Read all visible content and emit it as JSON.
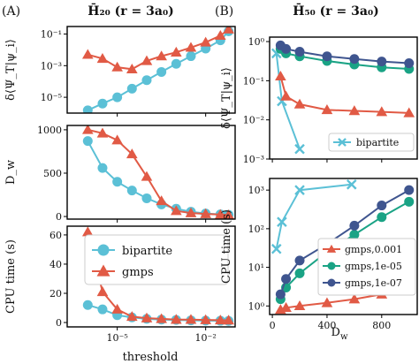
{
  "colors": {
    "bipartite": "#5bc0d6",
    "gmps": "#e15a45",
    "gmps_0.001": "#e15a45",
    "gmps_1e-05": "#1aa385",
    "gmps_1e-07": "#3f558f"
  },
  "left": {
    "panel_label": "(A)",
    "title": "H̄₂₀ (r = 3a₀)",
    "xlabel": "threshold"
  },
  "right": {
    "panel_label": "(B)",
    "title": "H̄₅₀ (r = 3a₀)",
    "xlabel": "D_w"
  },
  "chart_data": [
    {
      "id": "A-top",
      "type": "line",
      "xscale": "log",
      "yscale": "log",
      "xlim": [
        2e-07,
        0.1
      ],
      "ylim": [
        1e-06,
        0.3
      ],
      "ylabel": "δ⟨Ψ_T|ψ_i⟩",
      "yticks": [
        {
          "v": 1e-05,
          "label": "10⁻⁵"
        },
        {
          "v": 0.001,
          "label": "10⁻³"
        },
        {
          "v": 0.1,
          "label": "10⁻¹"
        }
      ],
      "xticks": [
        {
          "v": 1e-05,
          "label": ""
        },
        {
          "v": 0.01,
          "label": ""
        }
      ],
      "series": [
        {
          "name": "bipartite",
          "marker": "circle",
          "x": [
            1e-06,
            3.16e-06,
            1e-05,
            3.16e-05,
            0.0001,
            0.000316,
            0.001,
            0.00316,
            0.01,
            0.0316,
            0.06
          ],
          "y": [
            1.5e-06,
            4e-06,
            1e-05,
            3.5e-05,
            0.00012,
            0.0004,
            0.0013,
            0.004,
            0.012,
            0.04,
            0.15
          ]
        },
        {
          "name": "gmps",
          "marker": "triangle",
          "x": [
            1e-06,
            3.16e-06,
            1e-05,
            3.16e-05,
            0.0001,
            0.000316,
            0.001,
            0.00316,
            0.01,
            0.0316,
            0.06
          ],
          "y": [
            0.005,
            0.0028,
            0.0008,
            0.0006,
            0.002,
            0.004,
            0.007,
            0.014,
            0.03,
            0.08,
            0.2
          ]
        }
      ]
    },
    {
      "id": "A-mid",
      "type": "line",
      "xscale": "log",
      "yscale": "linear",
      "xlim": [
        2e-07,
        0.1
      ],
      "ylim": [
        -30,
        1050
      ],
      "ylabel": "D_w",
      "yticks": [
        {
          "v": 0,
          "label": "0"
        },
        {
          "v": 500,
          "label": "500"
        },
        {
          "v": 1000,
          "label": "1000"
        }
      ],
      "xticks": [
        {
          "v": 1e-05,
          "label": ""
        },
        {
          "v": 0.01,
          "label": ""
        }
      ],
      "series": [
        {
          "name": "bipartite",
          "marker": "circle",
          "x": [
            1e-06,
            3.16e-06,
            1e-05,
            3.16e-05,
            0.0001,
            0.000316,
            0.001,
            0.00316,
            0.01,
            0.0316,
            0.06
          ],
          "y": [
            870,
            560,
            400,
            300,
            210,
            140,
            90,
            55,
            35,
            25,
            20
          ]
        },
        {
          "name": "gmps",
          "marker": "triangle",
          "x": [
            1e-06,
            3.16e-06,
            1e-05,
            3.16e-05,
            0.0001,
            0.000316,
            0.001,
            0.00316,
            0.01,
            0.0316,
            0.06
          ],
          "y": [
            1000,
            960,
            880,
            720,
            460,
            180,
            65,
            40,
            30,
            22,
            18
          ]
        }
      ]
    },
    {
      "id": "A-bot",
      "type": "line",
      "xscale": "log",
      "yscale": "linear",
      "xlim": [
        2e-07,
        0.1
      ],
      "ylim": [
        -3,
        66
      ],
      "ylabel": "CPU time (s)",
      "yticks": [
        {
          "v": 0,
          "label": "0"
        },
        {
          "v": 20,
          "label": "20"
        },
        {
          "v": 40,
          "label": "40"
        },
        {
          "v": 60,
          "label": "60"
        }
      ],
      "xticks": [
        {
          "v": 1e-05,
          "label": "10⁻⁵"
        },
        {
          "v": 0.01,
          "label": "10⁻²"
        }
      ],
      "legend": "upper right",
      "series": [
        {
          "name": "bipartite",
          "marker": "circle",
          "x": [
            1e-06,
            3.16e-06,
            1e-05,
            3.16e-05,
            0.0001,
            0.000316,
            0.001,
            0.00316,
            0.01,
            0.0316,
            0.06
          ],
          "y": [
            12,
            9,
            5,
            3.5,
            2.5,
            2,
            1.8,
            1.5,
            1.3,
            1.2,
            1.1
          ]
        },
        {
          "name": "gmps",
          "marker": "triangle",
          "x": [
            1e-06,
            3.16e-06,
            1e-05,
            3.16e-05,
            0.0001,
            0.000316,
            0.001,
            0.00316,
            0.01,
            0.0316,
            0.06
          ],
          "y": [
            62,
            21,
            9,
            4,
            3,
            2.5,
            2,
            2,
            1.8,
            1.6,
            1.5
          ]
        }
      ]
    },
    {
      "id": "B-top",
      "type": "line",
      "xscale": "linear",
      "yscale": "log",
      "xlim": [
        -20,
        1060
      ],
      "ylim": [
        0.001,
        1.3
      ],
      "ylabel": "δ⟨Ψ_T|ψ_i⟩",
      "yticks": [
        {
          "v": 0.001,
          "label": "10⁻³"
        },
        {
          "v": 0.01,
          "label": "10⁻²"
        },
        {
          "v": 0.1,
          "label": "10⁻¹"
        },
        {
          "v": 1,
          "label": "10⁰"
        }
      ],
      "xticks": [
        {
          "v": 0,
          "label": ""
        },
        {
          "v": 400,
          "label": ""
        },
        {
          "v": 800,
          "label": ""
        }
      ],
      "legend": "lower right",
      "series": [
        {
          "name": "bipartite",
          "marker": "x",
          "x": [
            30,
            70,
            200
          ],
          "y": [
            0.5,
            0.03,
            0.0018
          ],
          "in_legend": true
        },
        {
          "name": "gmps,0.001",
          "marker": "triangle",
          "color_key": "gmps_0.001",
          "x": [
            60,
            100,
            200,
            400,
            600,
            800,
            1000
          ],
          "y": [
            0.13,
            0.04,
            0.025,
            0.018,
            0.017,
            0.016,
            0.015
          ],
          "in_legend": false
        },
        {
          "name": "gmps,1e-05",
          "marker": "circle",
          "color_key": "gmps_1e-05",
          "x": [
            60,
            100,
            200,
            400,
            600,
            800,
            1000
          ],
          "y": [
            0.65,
            0.5,
            0.42,
            0.32,
            0.26,
            0.22,
            0.2
          ],
          "in_legend": false
        },
        {
          "name": "gmps,1e-07",
          "marker": "circle",
          "color_key": "gmps_1e-07",
          "x": [
            60,
            100,
            200,
            400,
            600,
            800,
            1000
          ],
          "y": [
            0.8,
            0.65,
            0.55,
            0.42,
            0.36,
            0.31,
            0.28
          ],
          "in_legend": false
        }
      ]
    },
    {
      "id": "B-bot",
      "type": "line",
      "xscale": "linear",
      "yscale": "log",
      "xlim": [
        -20,
        1060
      ],
      "ylim": [
        0.6,
        2000
      ],
      "ylabel": "CPU time (s)",
      "yticks": [
        {
          "v": 1,
          "label": "10⁰"
        },
        {
          "v": 10,
          "label": "10¹"
        },
        {
          "v": 100,
          "label": "10²"
        },
        {
          "v": 1000,
          "label": "10³"
        }
      ],
      "xticks": [
        {
          "v": 0,
          "label": "0"
        },
        {
          "v": 400,
          "label": "400"
        },
        {
          "v": 800,
          "label": "800"
        }
      ],
      "legend": "lower right",
      "series": [
        {
          "name": "bipartite",
          "marker": "x",
          "x": [
            30,
            70,
            200,
            580
          ],
          "y": [
            30,
            150,
            1000,
            1400
          ],
          "in_legend": false
        },
        {
          "name": "gmps,0.001",
          "marker": "triangle",
          "color_key": "gmps_0.001",
          "x": [
            60,
            100,
            200,
            400,
            600,
            800,
            1000
          ],
          "y": [
            0.8,
            0.9,
            1.0,
            1.2,
            1.5,
            2.0,
            2.5
          ],
          "in_legend": true
        },
        {
          "name": "gmps,1e-05",
          "marker": "circle",
          "color_key": "gmps_1e-05",
          "x": [
            60,
            100,
            200,
            400,
            600,
            800,
            1000
          ],
          "y": [
            1.5,
            3,
            7,
            25,
            70,
            200,
            500
          ],
          "in_legend": true
        },
        {
          "name": "gmps,1e-07",
          "marker": "circle",
          "color_key": "gmps_1e-07",
          "x": [
            60,
            100,
            200,
            400,
            600,
            800,
            1000
          ],
          "y": [
            2,
            5,
            15,
            40,
            120,
            400,
            1000
          ],
          "in_legend": true
        }
      ]
    }
  ]
}
